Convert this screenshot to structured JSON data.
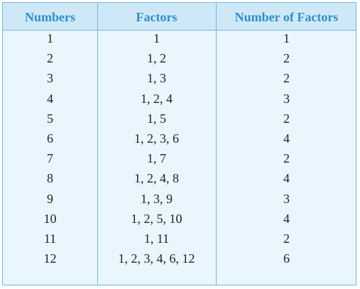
{
  "table": {
    "headers": [
      "Numbers",
      "Factors",
      "Number of Factors"
    ],
    "rows": [
      [
        "1",
        "1",
        "1"
      ],
      [
        "2",
        "1, 2",
        "2"
      ],
      [
        "3",
        "1, 3",
        "2"
      ],
      [
        "4",
        "1, 2, 4",
        "3"
      ],
      [
        "5",
        "1, 5",
        "2"
      ],
      [
        "6",
        "1, 2, 3, 6",
        "4"
      ],
      [
        "7",
        "1, 7",
        "2"
      ],
      [
        "8",
        "1, 2, 4, 8",
        "4"
      ],
      [
        "9",
        "1, 3, 9",
        "3"
      ],
      [
        "10",
        "1, 2, 5, 10",
        "4"
      ],
      [
        "11",
        "1, 11",
        "2"
      ],
      [
        "12",
        "1, 2, 3, 4, 6, 12",
        "6"
      ]
    ]
  },
  "colors": {
    "header_background": "#cfe8f8",
    "body_background": "#eaf6fd",
    "border": "#6fb6e0",
    "header_text": "#2d8fc9",
    "body_text": "#222222"
  }
}
